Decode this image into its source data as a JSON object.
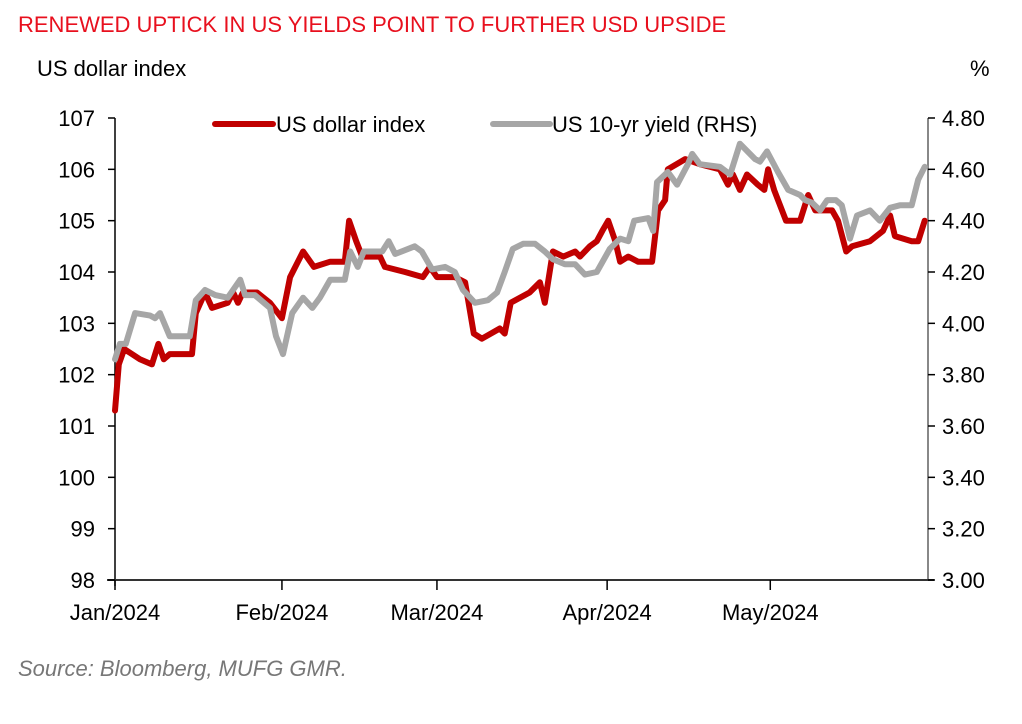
{
  "title": "RENEWED UPTICK IN US YIELDS POINT TO FURTHER USD UPSIDE",
  "left_axis_title": "US dollar index",
  "right_axis_title": "%",
  "source": "Source: Bloomberg, MUFG GMR.",
  "colors": {
    "title": "#e8101e",
    "dxy": "#c00000",
    "yield": "#a6a6a6",
    "axis": "#333333"
  },
  "chart_data": {
    "type": "line",
    "title": "RENEWED UPTICK IN US YIELDS POINT TO FURTHER USD UPSIDE",
    "xlabel": "",
    "ylabel": "US dollar index",
    "y2label": "%",
    "x_unit": "days since 1 Jan 2024",
    "xlim": [
      0,
      150
    ],
    "ylim": [
      98,
      107
    ],
    "y2lim": [
      3.0,
      4.8
    ],
    "x_ticks": [
      {
        "x": 0,
        "label": "Jan/2024"
      },
      {
        "x": 30.8,
        "label": "Feb/2024"
      },
      {
        "x": 59.4,
        "label": "Mar/2024"
      },
      {
        "x": 90.8,
        "label": "Apr/2024"
      },
      {
        "x": 120.9,
        "label": "May/2024"
      }
    ],
    "y_ticks": [
      "98",
      "99",
      "100",
      "101",
      "102",
      "103",
      "104",
      "105",
      "106",
      "107"
    ],
    "y2_ticks": [
      "3.00",
      "3.20",
      "3.40",
      "3.60",
      "3.80",
      "4.00",
      "4.20",
      "4.40",
      "4.60",
      "4.80"
    ],
    "legend": {
      "position": "top-center",
      "entries": [
        "US dollar index",
        "US 10-yr yield (RHS)"
      ]
    },
    "grid": false,
    "series": [
      {
        "name": "US dollar index",
        "axis": "left",
        "points": [
          [
            0.0,
            101.3
          ],
          [
            0.7,
            102.2
          ],
          [
            1.7,
            102.5
          ],
          [
            4.6,
            102.3
          ],
          [
            6.8,
            102.2
          ],
          [
            8.0,
            102.6
          ],
          [
            9.0,
            102.3
          ],
          [
            10.1,
            102.4
          ],
          [
            14.2,
            102.4
          ],
          [
            14.9,
            103.2
          ],
          [
            16.6,
            103.6
          ],
          [
            17.9,
            103.3
          ],
          [
            20.8,
            103.4
          ],
          [
            21.8,
            103.6
          ],
          [
            22.7,
            103.4
          ],
          [
            23.6,
            103.6
          ],
          [
            26.2,
            103.6
          ],
          [
            28.6,
            103.4
          ],
          [
            30.8,
            103.1
          ],
          [
            32.3,
            103.9
          ],
          [
            34.7,
            104.4
          ],
          [
            36.7,
            104.1
          ],
          [
            39.7,
            104.2
          ],
          [
            42.4,
            104.2
          ],
          [
            43.2,
            105.0
          ],
          [
            44.5,
            104.6
          ],
          [
            45.6,
            104.3
          ],
          [
            48.9,
            104.3
          ],
          [
            49.8,
            104.1
          ],
          [
            53.5,
            104.0
          ],
          [
            56.8,
            103.9
          ],
          [
            58.1,
            104.1
          ],
          [
            59.4,
            103.9
          ],
          [
            62.7,
            103.9
          ],
          [
            64.6,
            103.8
          ],
          [
            66.2,
            102.8
          ],
          [
            67.7,
            102.7
          ],
          [
            71.0,
            102.9
          ],
          [
            71.9,
            102.8
          ],
          [
            73.0,
            103.4
          ],
          [
            76.5,
            103.6
          ],
          [
            78.4,
            103.8
          ],
          [
            79.3,
            103.4
          ],
          [
            80.8,
            104.4
          ],
          [
            82.7,
            104.3
          ],
          [
            84.9,
            104.4
          ],
          [
            85.8,
            104.3
          ],
          [
            87.6,
            104.5
          ],
          [
            88.9,
            104.6
          ],
          [
            89.9,
            104.8
          ],
          [
            91.0,
            105.0
          ],
          [
            92.3,
            104.6
          ],
          [
            93.2,
            104.2
          ],
          [
            94.7,
            104.3
          ],
          [
            96.5,
            104.2
          ],
          [
            99.1,
            104.2
          ],
          [
            100.2,
            105.2
          ],
          [
            101.5,
            105.4
          ],
          [
            102.0,
            106.0
          ],
          [
            105.2,
            106.2
          ],
          [
            107.9,
            106.1
          ],
          [
            111.6,
            106.0
          ],
          [
            113.1,
            105.7
          ],
          [
            114.0,
            105.9
          ],
          [
            115.3,
            105.6
          ],
          [
            116.6,
            105.9
          ],
          [
            118.6,
            105.7
          ],
          [
            119.8,
            105.6
          ],
          [
            120.5,
            106.0
          ],
          [
            121.6,
            105.6
          ],
          [
            123.8,
            105.0
          ],
          [
            126.4,
            105.0
          ],
          [
            127.9,
            105.5
          ],
          [
            129.2,
            105.2
          ],
          [
            132.3,
            105.2
          ],
          [
            133.4,
            105.0
          ],
          [
            134.9,
            104.4
          ],
          [
            136.0,
            104.5
          ],
          [
            139.3,
            104.6
          ],
          [
            141.7,
            104.8
          ],
          [
            143.0,
            105.1
          ],
          [
            143.9,
            104.7
          ],
          [
            147.0,
            104.6
          ],
          [
            148.2,
            104.6
          ],
          [
            149.4,
            105.0
          ]
        ]
      },
      {
        "name": "US 10-yr yield (RHS)",
        "axis": "right",
        "points": [
          [
            0.0,
            3.86
          ],
          [
            0.9,
            3.92
          ],
          [
            2.0,
            3.92
          ],
          [
            3.7,
            4.04
          ],
          [
            6.5,
            4.03
          ],
          [
            7.4,
            4.02
          ],
          [
            8.3,
            4.04
          ],
          [
            10.1,
            3.95
          ],
          [
            12.9,
            3.95
          ],
          [
            13.8,
            3.95
          ],
          [
            14.9,
            4.09
          ],
          [
            16.6,
            4.13
          ],
          [
            18.5,
            4.11
          ],
          [
            20.8,
            4.1
          ],
          [
            23.1,
            4.17
          ],
          [
            24.0,
            4.11
          ],
          [
            25.8,
            4.11
          ],
          [
            28.6,
            4.06
          ],
          [
            29.7,
            3.95
          ],
          [
            31.0,
            3.88
          ],
          [
            32.7,
            4.04
          ],
          [
            34.7,
            4.1
          ],
          [
            36.4,
            4.06
          ],
          [
            37.8,
            4.1
          ],
          [
            39.7,
            4.17
          ],
          [
            42.4,
            4.17
          ],
          [
            43.4,
            4.28
          ],
          [
            44.8,
            4.22
          ],
          [
            45.9,
            4.28
          ],
          [
            49.3,
            4.28
          ],
          [
            50.5,
            4.32
          ],
          [
            51.7,
            4.27
          ],
          [
            55.3,
            4.3
          ],
          [
            56.6,
            4.28
          ],
          [
            58.5,
            4.21
          ],
          [
            60.9,
            4.22
          ],
          [
            62.7,
            4.2
          ],
          [
            64.2,
            4.13
          ],
          [
            66.4,
            4.08
          ],
          [
            68.8,
            4.09
          ],
          [
            70.5,
            4.12
          ],
          [
            71.9,
            4.2
          ],
          [
            73.4,
            4.29
          ],
          [
            75.3,
            4.31
          ],
          [
            77.5,
            4.31
          ],
          [
            79.3,
            4.28
          ],
          [
            80.8,
            4.25
          ],
          [
            83.0,
            4.23
          ],
          [
            84.9,
            4.23
          ],
          [
            86.7,
            4.19
          ],
          [
            88.9,
            4.2
          ],
          [
            91.3,
            4.29
          ],
          [
            93.2,
            4.33
          ],
          [
            94.7,
            4.32
          ],
          [
            95.8,
            4.4
          ],
          [
            98.4,
            4.41
          ],
          [
            99.3,
            4.36
          ],
          [
            100.0,
            4.55
          ],
          [
            102.0,
            4.59
          ],
          [
            103.7,
            4.54
          ],
          [
            105.7,
            4.62
          ],
          [
            106.5,
            4.66
          ],
          [
            107.9,
            4.62
          ],
          [
            111.6,
            4.61
          ],
          [
            113.5,
            4.58
          ],
          [
            115.3,
            4.7
          ],
          [
            118.1,
            4.64
          ],
          [
            119.0,
            4.63
          ],
          [
            120.3,
            4.67
          ],
          [
            122.3,
            4.59
          ],
          [
            124.2,
            4.52
          ],
          [
            126.4,
            4.5
          ],
          [
            127.3,
            4.48
          ],
          [
            128.6,
            4.47
          ],
          [
            130.1,
            4.44
          ],
          [
            131.4,
            4.48
          ],
          [
            133.0,
            4.48
          ],
          [
            134.1,
            4.46
          ],
          [
            135.6,
            4.33
          ],
          [
            136.9,
            4.42
          ],
          [
            139.3,
            4.44
          ],
          [
            141.1,
            4.4
          ],
          [
            143.0,
            4.45
          ],
          [
            144.8,
            4.46
          ],
          [
            147.0,
            4.46
          ],
          [
            148.2,
            4.56
          ],
          [
            149.4,
            4.61
          ]
        ]
      }
    ]
  }
}
